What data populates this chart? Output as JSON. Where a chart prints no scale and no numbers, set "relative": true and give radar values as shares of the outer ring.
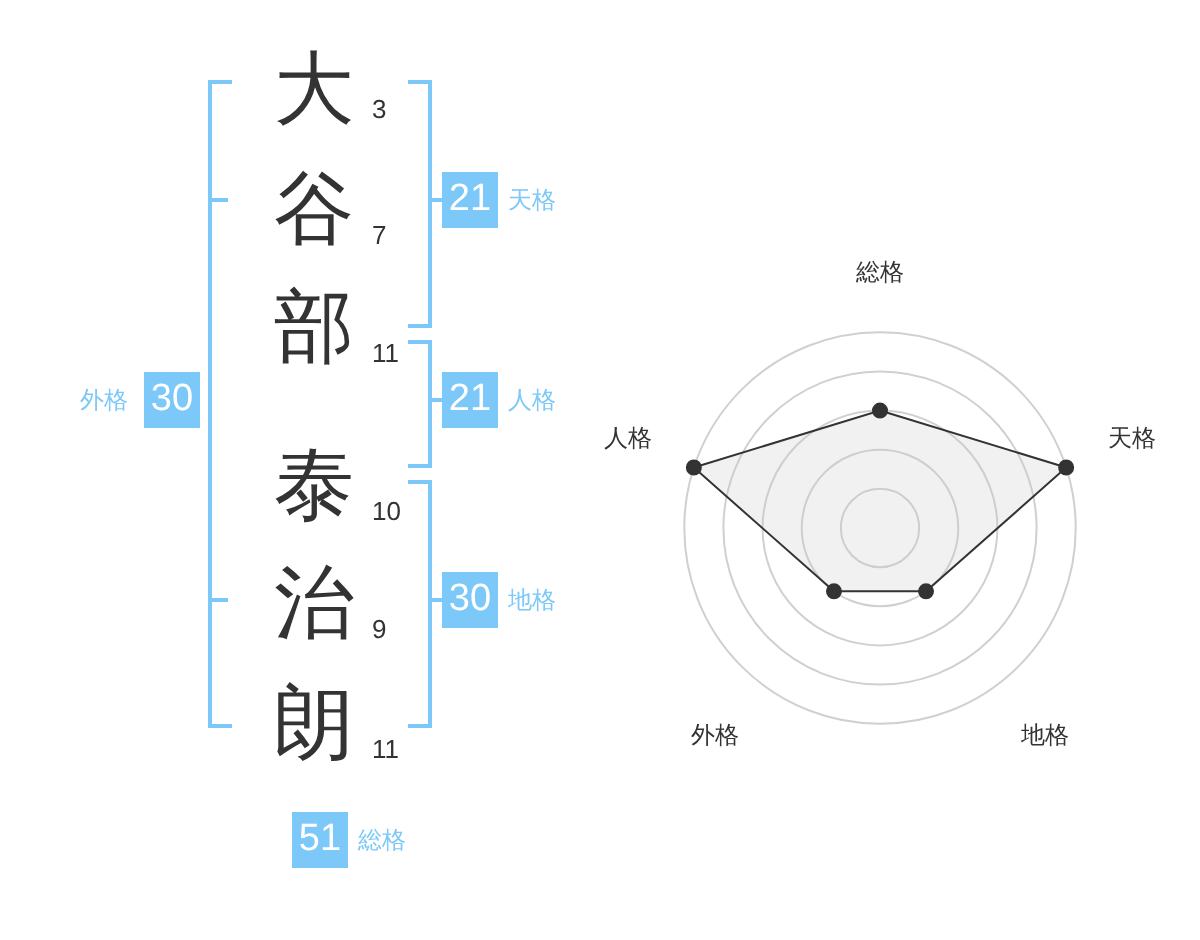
{
  "chart_data": [
    {
      "type": "other",
      "categories": [
        "大",
        "谷",
        "部",
        "泰",
        "治",
        "朗"
      ],
      "values": [
        3,
        7,
        11,
        10,
        9,
        11
      ],
      "data_labels": true,
      "totals": [
        "21",
        "21",
        "30",
        "30",
        "51"
      ],
      "annotations": [
        "天格",
        "人格",
        "地格",
        "外格",
        "総格"
      ]
    },
    {
      "type": "radar",
      "categories": [
        "総格",
        "天格",
        "地格",
        "外格",
        "人格"
      ],
      "relative": true,
      "marker": "circle",
      "series": [
        {
          "color": "#333333",
          "values": [
            0.6,
            1.0,
            0.4,
            0.4,
            1.0
          ]
        }
      ]
    }
  ]
}
